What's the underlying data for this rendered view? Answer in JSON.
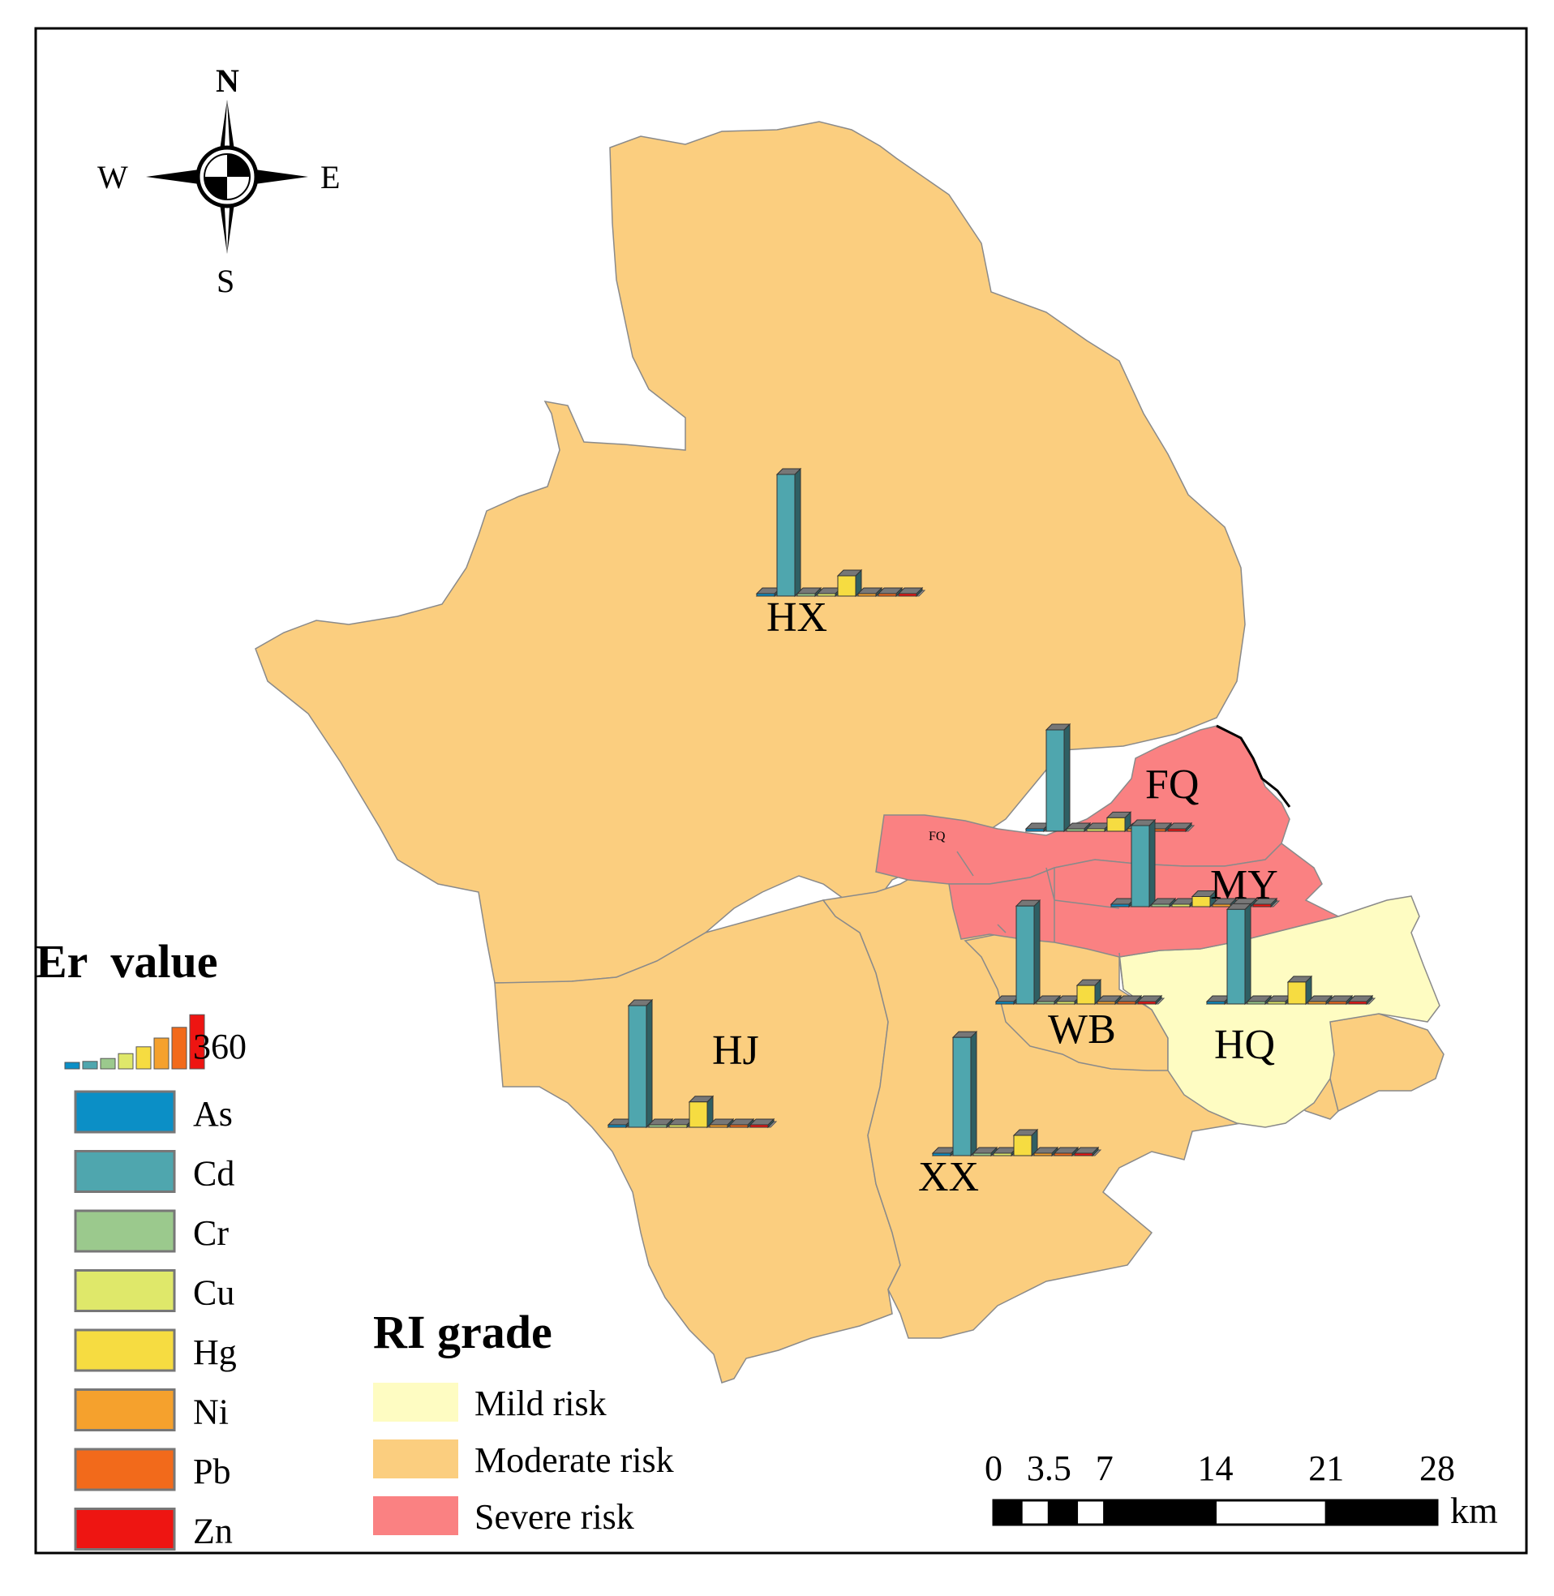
{
  "compass": {
    "north": "N",
    "south": "S",
    "east": "E",
    "west": "W"
  },
  "legend_er": {
    "title": "Er  value",
    "scale_max_label": "360",
    "items": [
      {
        "label": "As",
        "color": "#0b8fc6"
      },
      {
        "label": "Cd",
        "color": "#4fa6ae"
      },
      {
        "label": "Cr",
        "color": "#9bc98d"
      },
      {
        "label": "Cu",
        "color": "#dfe86a"
      },
      {
        "label": "Hg",
        "color": "#f6dc41"
      },
      {
        "label": "Ni",
        "color": "#f5a12d"
      },
      {
        "label": "Pb",
        "color": "#f26a1b"
      },
      {
        "label": "Zn",
        "color": "#ee1512"
      }
    ]
  },
  "legend_ri": {
    "title": "RI grade",
    "items": [
      {
        "label": "Mild risk",
        "color": "#fefcc2"
      },
      {
        "label": "Moderate risk",
        "color": "#fbce7f"
      },
      {
        "label": "Severe risk",
        "color": "#fa8182"
      }
    ]
  },
  "scale_bar": {
    "tick_labels": [
      "0",
      "3.5",
      "7",
      "14",
      "21",
      "28"
    ],
    "unit": "km"
  },
  "districts": [
    {
      "name": "HX",
      "ri_grade": "Moderate risk",
      "er": {
        "Cd": 360,
        "Hg": 60
      }
    },
    {
      "name": "FQ",
      "ri_grade": "Severe risk",
      "er": {
        "Cd": 300,
        "Hg": 40
      }
    },
    {
      "name": "MY",
      "ri_grade": "Severe risk",
      "er": {
        "Cd": 240,
        "Hg": 30
      }
    },
    {
      "name": "WB",
      "ri_grade": "Moderate risk",
      "er": {
        "Cd": 290,
        "Hg": 55
      }
    },
    {
      "name": "HQ",
      "ri_grade": "Mild risk",
      "er": {
        "Cd": 280,
        "Hg": 65
      }
    },
    {
      "name": "HJ",
      "ri_grade": "Moderate risk",
      "er": {
        "Cd": 360,
        "Hg": 75
      }
    },
    {
      "name": "XX",
      "ri_grade": "Moderate risk",
      "er": {
        "Cd": 350,
        "Hg": 60
      }
    }
  ],
  "inset_label": "FQ"
}
